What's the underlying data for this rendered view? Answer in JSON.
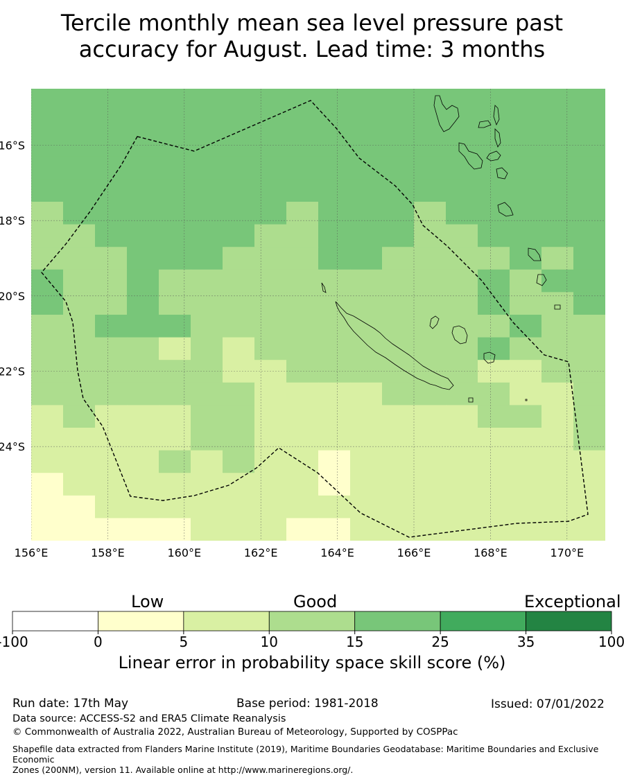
{
  "title": {
    "line1": "Tercile monthly mean sea level pressure past",
    "line2": "accuracy for August. Lead time: 3 months"
  },
  "map": {
    "lon_labels": [
      "156°E",
      "158°E",
      "160°E",
      "162°E",
      "164°E",
      "166°E",
      "168°E",
      "170°E"
    ],
    "lat_labels": [
      "16°S",
      "18°S",
      "20°S",
      "22°S",
      "24°S"
    ],
    "lon_range": [
      156,
      171
    ],
    "lat_range": [
      -14.5,
      -26.5
    ],
    "palette": {
      "0": "#ffffcc",
      "1": "#d9f0a3",
      "2": "#addd8e",
      "3": "#78c679",
      "4": "#41ab5d",
      "5": "#238443"
    },
    "cell_grid_note": "rows top to bottom, 18 columns each; values are skill-category indices",
    "cells": [
      [
        3,
        3,
        3,
        3,
        3,
        3,
        3,
        3,
        3,
        3,
        3,
        3,
        3,
        3,
        3,
        3,
        3,
        3
      ],
      [
        3,
        3,
        3,
        3,
        3,
        3,
        3,
        3,
        3,
        3,
        3,
        3,
        3,
        3,
        3,
        3,
        3,
        3
      ],
      [
        3,
        3,
        3,
        3,
        3,
        3,
        3,
        3,
        3,
        3,
        3,
        3,
        3,
        3,
        3,
        3,
        3,
        3
      ],
      [
        3,
        3,
        3,
        3,
        3,
        3,
        3,
        3,
        3,
        3,
        3,
        3,
        3,
        3,
        3,
        3,
        3,
        3
      ],
      [
        3,
        3,
        3,
        3,
        3,
        3,
        3,
        3,
        3,
        3,
        3,
        3,
        3,
        3,
        3,
        3,
        3,
        3
      ],
      [
        2,
        3,
        3,
        3,
        3,
        3,
        3,
        3,
        2,
        3,
        3,
        3,
        2,
        3,
        3,
        3,
        3,
        3
      ],
      [
        2,
        2,
        3,
        3,
        3,
        3,
        3,
        2,
        2,
        3,
        3,
        3,
        2,
        2,
        3,
        3,
        3,
        3
      ],
      [
        2,
        2,
        2,
        3,
        3,
        3,
        2,
        2,
        2,
        3,
        3,
        2,
        2,
        2,
        2,
        3,
        2,
        3
      ],
      [
        3,
        2,
        2,
        3,
        2,
        2,
        2,
        2,
        2,
        2,
        2,
        2,
        2,
        2,
        3,
        2,
        3,
        3
      ],
      [
        3,
        2,
        2,
        3,
        2,
        2,
        2,
        2,
        2,
        2,
        2,
        2,
        2,
        2,
        3,
        2,
        2,
        3
      ],
      [
        2,
        2,
        3,
        3,
        3,
        2,
        2,
        2,
        2,
        2,
        2,
        2,
        2,
        2,
        2,
        3,
        2,
        2
      ],
      [
        2,
        2,
        2,
        2,
        1,
        2,
        1,
        2,
        2,
        2,
        2,
        2,
        2,
        2,
        3,
        2,
        2,
        2
      ],
      [
        2,
        2,
        2,
        2,
        2,
        2,
        1,
        1,
        2,
        2,
        2,
        2,
        2,
        2,
        1,
        1,
        2,
        2
      ],
      [
        2,
        2,
        2,
        2,
        2,
        2,
        2,
        1,
        1,
        1,
        1,
        2,
        2,
        2,
        2,
        1,
        1,
        2
      ],
      [
        1,
        2,
        1,
        1,
        1,
        2,
        2,
        1,
        1,
        1,
        1,
        1,
        1,
        1,
        2,
        2,
        1,
        2
      ],
      [
        1,
        1,
        1,
        1,
        1,
        2,
        2,
        1,
        1,
        1,
        1,
        1,
        1,
        1,
        1,
        1,
        1,
        2
      ],
      [
        1,
        1,
        1,
        1,
        2,
        1,
        2,
        1,
        1,
        0,
        1,
        1,
        1,
        1,
        1,
        1,
        1,
        1
      ],
      [
        0,
        1,
        1,
        1,
        1,
        1,
        1,
        1,
        1,
        0,
        1,
        1,
        1,
        1,
        1,
        1,
        1,
        1
      ],
      [
        0,
        0,
        1,
        1,
        1,
        1,
        1,
        1,
        1,
        1,
        1,
        1,
        1,
        1,
        1,
        1,
        1,
        1
      ],
      [
        0,
        0,
        0,
        0,
        0,
        1,
        1,
        1,
        0,
        0,
        1,
        1,
        1,
        1,
        1,
        1,
        1,
        1
      ]
    ]
  },
  "colorbar": {
    "ticks": [
      "-100",
      "0",
      "5",
      "10",
      "15",
      "25",
      "35",
      "100"
    ],
    "colors": [
      "#ffffff",
      "#ffffcc",
      "#d9f0a3",
      "#addd8e",
      "#78c679",
      "#41ab5d",
      "#238443"
    ],
    "categories": {
      "low": "Low",
      "good": "Good",
      "exceptional": "Exceptional"
    },
    "label": "Linear error in probability space skill score (%)"
  },
  "footer": {
    "run_date": "Run date: 17th May",
    "base_period": "Base period: 1981-2018",
    "issued": "Issued: 07/01/2022",
    "data_source": "Data source: ACCESS-S2 and ERA5 Climate Reanalysis",
    "copyright": "© Commonwealth of Australia 2022, Australian Bureau of Meteorology, Supported by COSPPac",
    "shapefile_line1": "Shapefile data extracted from Flanders Marine Institute (2019), Maritime Boundaries Geodatabase: Maritime Boundaries and Exclusive Economic",
    "shapefile_line2": "Zones (200NM), version 11. Available online at http://www.marineregions.org/."
  }
}
